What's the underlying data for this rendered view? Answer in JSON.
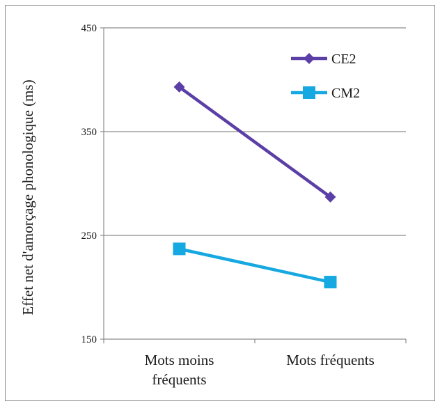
{
  "chart_data": {
    "type": "line",
    "categories": [
      "Mots moins fréquents",
      "Mots fréquents"
    ],
    "category_lines": [
      [
        "Mots moins",
        "fréquents"
      ],
      [
        "Mots fréquents"
      ]
    ],
    "ylabel": "Effet net d'amorçage phonologique (ms)",
    "xlabel": "",
    "ylim": [
      150,
      450
    ],
    "yticks": [
      150,
      250,
      350,
      450
    ],
    "grid": true,
    "legend_position": "top-right",
    "series": [
      {
        "name": "CE2",
        "values": [
          393,
          287
        ],
        "color": "#5b3fa6",
        "marker": "diamond"
      },
      {
        "name": "CM2",
        "values": [
          237,
          205
        ],
        "color": "#16a8e0",
        "marker": "square"
      }
    ]
  }
}
